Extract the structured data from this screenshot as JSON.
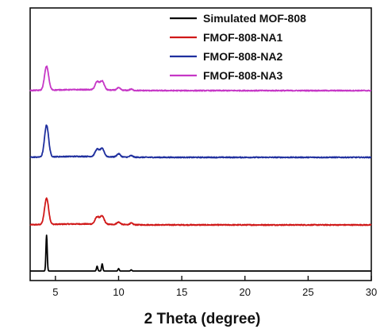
{
  "chart_data": {
    "type": "line",
    "title": "",
    "xlabel": "2 Theta (degree)",
    "ylabel": "",
    "xlim": [
      3,
      30
    ],
    "xticks": [
      5,
      10,
      15,
      20,
      25,
      30
    ],
    "x_tick_labels": [
      "5",
      "10",
      "15",
      "20",
      "25",
      "30"
    ],
    "y_ticks_shown": false,
    "grid": false,
    "stacked_offset": true,
    "legend_position": "top-right",
    "legend": [
      "Simulated MOF-808",
      "FMOF-808-NA1",
      "FMOF-808-NA2",
      "FMOF-808-NA3"
    ],
    "series": [
      {
        "name": "Simulated MOF-808",
        "color": "#000000",
        "baseline": 0,
        "peaks": [
          [
            4.3,
            45
          ],
          [
            8.3,
            6
          ],
          [
            8.7,
            9
          ],
          [
            10.0,
            3
          ],
          [
            11.0,
            1.5
          ]
        ]
      },
      {
        "name": "FMOF-808-NA1",
        "color": "#d01818",
        "baseline": 58,
        "peaks": [
          [
            4.3,
            33
          ],
          [
            8.3,
            9
          ],
          [
            8.7,
            10
          ],
          [
            10.0,
            3
          ],
          [
            11.0,
            2
          ]
        ]
      },
      {
        "name": "FMOF-808-NA2",
        "color": "#1f2f9e",
        "baseline": 143,
        "peaks": [
          [
            4.3,
            40
          ],
          [
            8.3,
            9
          ],
          [
            8.7,
            10
          ],
          [
            10.0,
            4
          ],
          [
            11.0,
            2
          ]
        ]
      },
      {
        "name": "FMOF-808-NA3",
        "color": "#c637c6",
        "baseline": 227,
        "peaks": [
          [
            4.3,
            30
          ],
          [
            8.3,
            10
          ],
          [
            8.7,
            11
          ],
          [
            10.0,
            3
          ],
          [
            11.0,
            1.5
          ]
        ]
      }
    ]
  }
}
